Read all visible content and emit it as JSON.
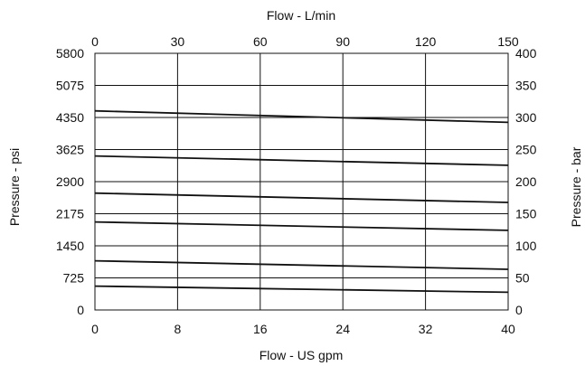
{
  "chart_data": {
    "type": "line",
    "title": "",
    "xlabel": "Flow - US gpm",
    "x2label": "Flow - L/min",
    "ylabel": "Pressure - psi",
    "y2label": "Pressure - bar",
    "xlim": [
      0,
      40
    ],
    "ylim": [
      0,
      5800
    ],
    "x2lim": [
      0,
      150
    ],
    "y2lim": [
      0,
      400
    ],
    "x_ticks": [
      "0",
      "8",
      "16",
      "24",
      "32",
      "40"
    ],
    "x2_ticks": [
      "0",
      "30",
      "60",
      "90",
      "120",
      "150"
    ],
    "y_ticks": [
      "0",
      "725",
      "1450",
      "2175",
      "2900",
      "3625",
      "4350",
      "5075",
      "5800"
    ],
    "y2_ticks": [
      "0",
      "50",
      "100",
      "150",
      "200",
      "250",
      "300",
      "350",
      "400"
    ],
    "grid": true,
    "legend": "none",
    "series": [
      {
        "x": [
          0,
          40
        ],
        "values": [
          4500,
          4240
        ]
      },
      {
        "x": [
          0,
          40
        ],
        "values": [
          3480,
          3270
        ]
      },
      {
        "x": [
          0,
          40
        ],
        "values": [
          2640,
          2430
        ]
      },
      {
        "x": [
          0,
          40
        ],
        "values": [
          1990,
          1800
        ]
      },
      {
        "x": [
          0,
          40
        ],
        "values": [
          1110,
          920
        ]
      },
      {
        "x": [
          0,
          40
        ],
        "values": [
          540,
          400
        ]
      }
    ]
  }
}
